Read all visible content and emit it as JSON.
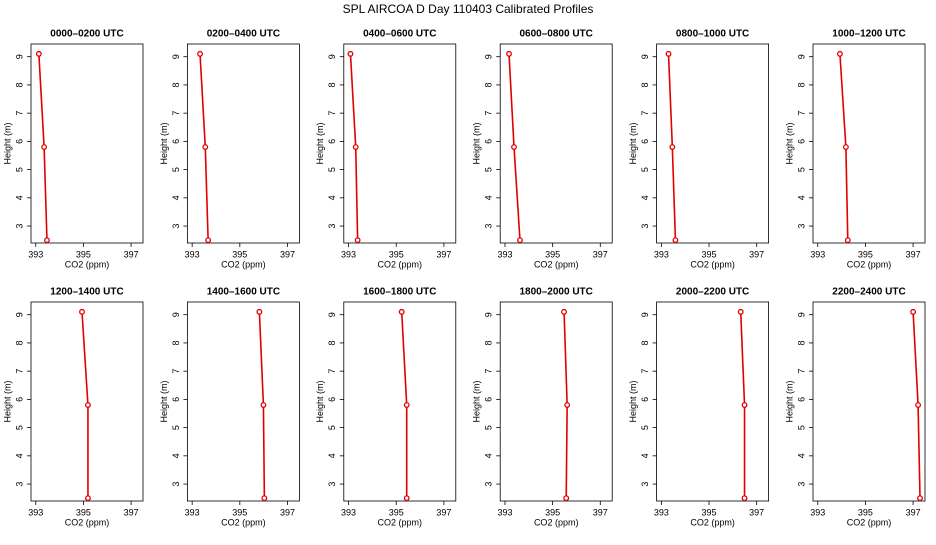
{
  "title": "SPL AIRCOA D  Day 110403  Calibrated Profiles",
  "chart_data": [
    {
      "type": "line",
      "title": "0000–0200 UTC",
      "xlabel": "CO2 (ppm)",
      "ylabel": "Height (m)",
      "x": [
        393.47,
        393.35,
        393.13
      ],
      "series": [
        {
          "color": "#e00000",
          "values": [
            2.5,
            5.8,
            9.1
          ]
        }
      ],
      "xlim": [
        392.8,
        397.5
      ],
      "xticks": [
        393,
        395,
        397
      ],
      "ylim": [
        2.4,
        9.45
      ],
      "yticks": [
        3,
        4,
        5,
        6,
        7,
        8,
        9
      ]
    },
    {
      "type": "line",
      "title": "0200–0400 UTC",
      "xlabel": "CO2 (ppm)",
      "ylabel": "Height (m)",
      "x": [
        393.67,
        393.55,
        393.33
      ],
      "series": [
        {
          "color": "#e00000",
          "values": [
            2.5,
            5.8,
            9.1
          ]
        }
      ],
      "xlim": [
        392.8,
        397.5
      ],
      "xticks": [
        393,
        395,
        397
      ],
      "ylim": [
        2.4,
        9.45
      ],
      "yticks": [
        3,
        4,
        5,
        6,
        7,
        8,
        9
      ]
    },
    {
      "type": "line",
      "title": "0400–0600 UTC",
      "xlabel": "CO2 (ppm)",
      "ylabel": "Height (m)",
      "x": [
        393.38,
        393.3,
        393.08
      ],
      "series": [
        {
          "color": "#e00000",
          "values": [
            2.5,
            5.8,
            9.1
          ]
        }
      ],
      "xlim": [
        392.8,
        397.5
      ],
      "xticks": [
        393,
        395,
        397
      ],
      "ylim": [
        2.4,
        9.45
      ],
      "yticks": [
        3,
        4,
        5,
        6,
        7,
        8,
        9
      ]
    },
    {
      "type": "line",
      "title": "0600–0800 UTC",
      "xlabel": "CO2 (ppm)",
      "ylabel": "Height (m)",
      "x": [
        393.63,
        393.38,
        393.17
      ],
      "series": [
        {
          "color": "#e00000",
          "values": [
            2.5,
            5.8,
            9.1
          ]
        }
      ],
      "xlim": [
        392.8,
        397.5
      ],
      "xticks": [
        393,
        395,
        397
      ],
      "ylim": [
        2.4,
        9.45
      ],
      "yticks": [
        3,
        4,
        5,
        6,
        7,
        8,
        9
      ]
    },
    {
      "type": "line",
      "title": "0800–1000 UTC",
      "xlabel": "CO2 (ppm)",
      "ylabel": "Height (m)",
      "x": [
        393.59,
        393.46,
        393.3
      ],
      "series": [
        {
          "color": "#e00000",
          "values": [
            2.5,
            5.8,
            9.1
          ]
        }
      ],
      "xlim": [
        392.8,
        397.5
      ],
      "xticks": [
        393,
        395,
        397
      ],
      "ylim": [
        2.4,
        9.45
      ],
      "yticks": [
        3,
        4,
        5,
        6,
        7,
        8,
        9
      ]
    },
    {
      "type": "line",
      "title": "1000–1200 UTC",
      "xlabel": "CO2 (ppm)",
      "ylabel": "Height (m)",
      "x": [
        394.26,
        394.18,
        393.93
      ],
      "series": [
        {
          "color": "#e00000",
          "values": [
            2.5,
            5.8,
            9.1
          ]
        }
      ],
      "xlim": [
        392.8,
        397.5
      ],
      "xticks": [
        393,
        395,
        397
      ],
      "ylim": [
        2.4,
        9.45
      ],
      "yticks": [
        3,
        4,
        5,
        6,
        7,
        8,
        9
      ]
    },
    {
      "type": "line",
      "title": "1200–1400 UTC",
      "xlabel": "CO2 (ppm)",
      "ylabel": "Height (m)",
      "x": [
        395.19,
        395.19,
        394.94
      ],
      "series": [
        {
          "color": "#e00000",
          "values": [
            2.5,
            5.8,
            9.1
          ]
        }
      ],
      "xlim": [
        392.8,
        397.5
      ],
      "xticks": [
        393,
        395,
        397
      ],
      "ylim": [
        2.4,
        9.45
      ],
      "yticks": [
        3,
        4,
        5,
        6,
        7,
        8,
        9
      ]
    },
    {
      "type": "line",
      "title": "1400–1600 UTC",
      "xlabel": "CO2 (ppm)",
      "ylabel": "Height (m)",
      "x": [
        396.03,
        395.99,
        395.82
      ],
      "series": [
        {
          "color": "#e00000",
          "values": [
            2.5,
            5.8,
            9.1
          ]
        }
      ],
      "xlim": [
        392.8,
        397.5
      ],
      "xticks": [
        393,
        395,
        397
      ],
      "ylim": [
        2.4,
        9.45
      ],
      "yticks": [
        3,
        4,
        5,
        6,
        7,
        8,
        9
      ]
    },
    {
      "type": "line",
      "title": "1600–1800 UTC",
      "xlabel": "CO2 (ppm)",
      "ylabel": "Height (m)",
      "x": [
        395.44,
        395.44,
        395.23
      ],
      "series": [
        {
          "color": "#e00000",
          "values": [
            2.5,
            5.8,
            9.1
          ]
        }
      ],
      "xlim": [
        392.8,
        397.5
      ],
      "xticks": [
        393,
        395,
        397
      ],
      "ylim": [
        2.4,
        9.45
      ],
      "yticks": [
        3,
        4,
        5,
        6,
        7,
        8,
        9
      ]
    },
    {
      "type": "line",
      "title": "1800–2000 UTC",
      "xlabel": "CO2 (ppm)",
      "ylabel": "Height (m)",
      "x": [
        395.57,
        395.61,
        395.48
      ],
      "series": [
        {
          "color": "#e00000",
          "values": [
            2.5,
            5.8,
            9.1
          ]
        }
      ],
      "xlim": [
        392.8,
        397.5
      ],
      "xticks": [
        393,
        395,
        397
      ],
      "ylim": [
        2.4,
        9.45
      ],
      "yticks": [
        3,
        4,
        5,
        6,
        7,
        8,
        9
      ]
    },
    {
      "type": "line",
      "title": "2000–2200 UTC",
      "xlabel": "CO2 (ppm)",
      "ylabel": "Height (m)",
      "x": [
        396.49,
        396.49,
        396.33
      ],
      "series": [
        {
          "color": "#e00000",
          "values": [
            2.5,
            5.8,
            9.1
          ]
        }
      ],
      "xlim": [
        392.8,
        397.5
      ],
      "xticks": [
        393,
        395,
        397
      ],
      "ylim": [
        2.4,
        9.45
      ],
      "yticks": [
        3,
        4,
        5,
        6,
        7,
        8,
        9
      ]
    },
    {
      "type": "line",
      "title": "2200–2400 UTC",
      "xlabel": "CO2 (ppm)",
      "ylabel": "Height (m)",
      "x": [
        397.29,
        397.21,
        397.0
      ],
      "series": [
        {
          "color": "#e00000",
          "values": [
            2.5,
            5.8,
            9.1
          ]
        }
      ],
      "xlim": [
        392.8,
        397.5
      ],
      "xticks": [
        393,
        395,
        397
      ],
      "ylim": [
        2.4,
        9.45
      ],
      "yticks": [
        3,
        4,
        5,
        6,
        7,
        8,
        9
      ]
    }
  ]
}
